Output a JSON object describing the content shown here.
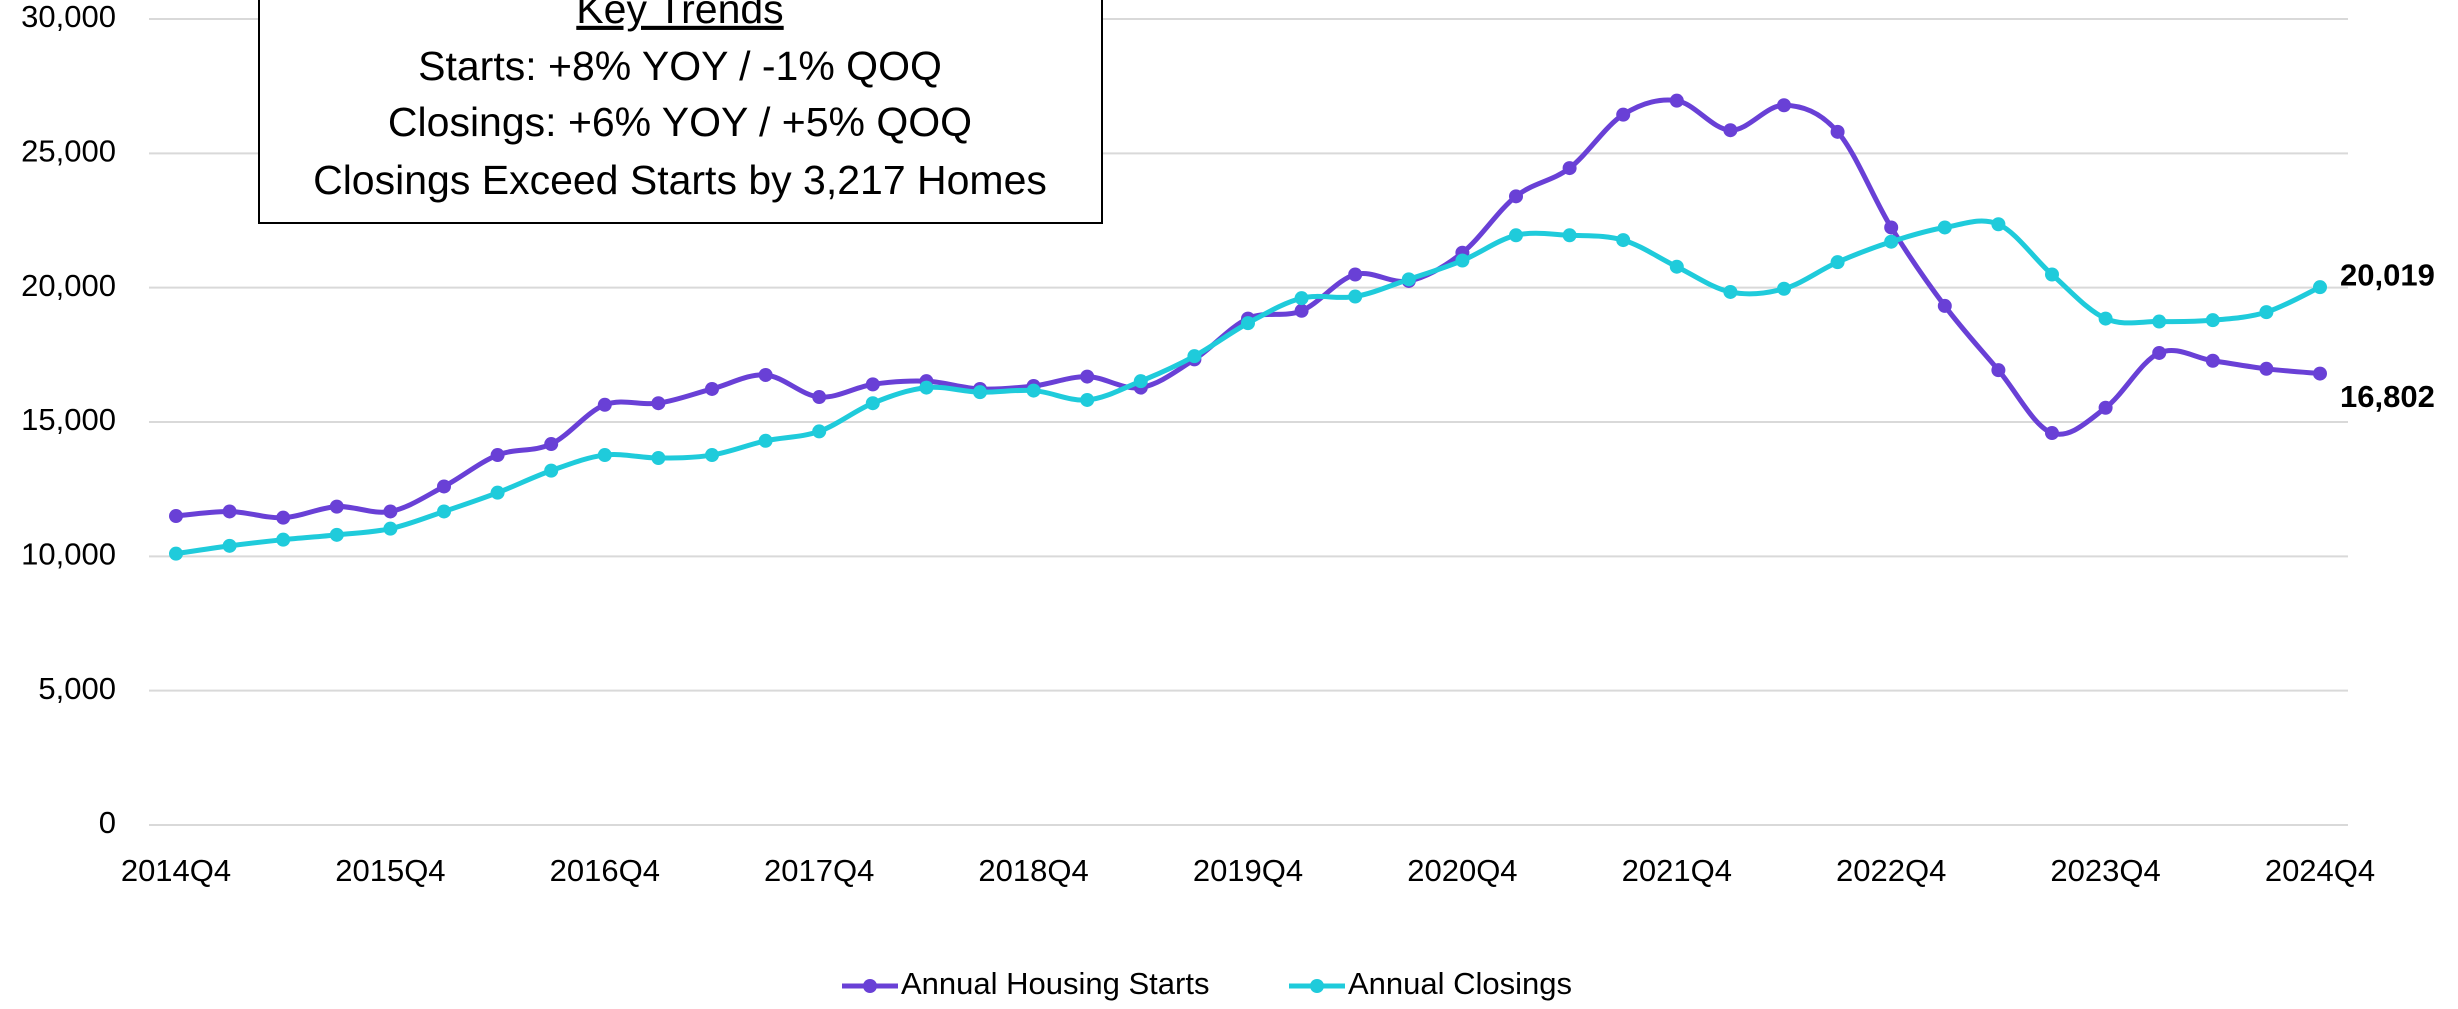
{
  "chart_data": {
    "type": "line",
    "annotation": {
      "title": "Key Trends",
      "lines": [
        "Starts:  +8% YOY / -1% QOQ",
        "Closings:  +6% YOY / +5% QOQ",
        "Closings Exceed Starts by 3,217 Homes"
      ]
    },
    "categories": [
      "2014Q4",
      null,
      null,
      null,
      "2015Q4",
      null,
      null,
      null,
      "2016Q4",
      null,
      null,
      null,
      "2017Q4",
      null,
      null,
      null,
      "2018Q4",
      null,
      null,
      null,
      "2019Q4",
      null,
      null,
      null,
      "2020Q4",
      null,
      null,
      null,
      "2021Q4",
      null,
      null,
      null,
      "2022Q4",
      null,
      null,
      null,
      "2023Q4",
      null,
      null,
      null,
      "2024Q4"
    ],
    "series": [
      {
        "name": "Annual Housing Starts",
        "color": "#6940d6",
        "values": [
          11500,
          11670,
          11440,
          11850,
          11670,
          12600,
          13770,
          14180,
          15640,
          15700,
          16230,
          16750,
          15930,
          16400,
          16520,
          16230,
          16340,
          16690,
          16280,
          17330,
          18850,
          19140,
          20490,
          20250,
          21300,
          23400,
          24450,
          26440,
          26960,
          25860,
          26790,
          25800,
          22240,
          19320,
          16930,
          14590,
          15530,
          17570,
          17280,
          16980,
          16802
        ],
        "end_label": "16,802"
      },
      {
        "name": "Annual Closings",
        "color": "#1fcbdb",
        "values": [
          10100,
          10390,
          10620,
          10800,
          11030,
          11670,
          12370,
          13190,
          13770,
          13660,
          13770,
          14300,
          14650,
          15700,
          16280,
          16110,
          16170,
          15820,
          16520,
          17450,
          18680,
          19610,
          19670,
          20310,
          21010,
          21950,
          21950,
          21770,
          20780,
          19840,
          19960,
          20950,
          21710,
          22240,
          22360,
          20490,
          18850,
          18740,
          18790,
          19090,
          20019
        ],
        "end_label": "20,019"
      }
    ],
    "ylim": [
      0,
      30000
    ],
    "yticks": [
      0,
      {
        "value": 5000,
        "label": "5,000"
      },
      {
        "value": 10000,
        "label": "10,000"
      },
      {
        "value": 15000,
        "label": "15,000"
      },
      {
        "value": 20000,
        "label": "20,000"
      },
      {
        "value": 25000,
        "label": "25,000"
      },
      {
        "value": 30000,
        "label": "30,000"
      }
    ],
    "grid": true,
    "legend": "bottom"
  }
}
